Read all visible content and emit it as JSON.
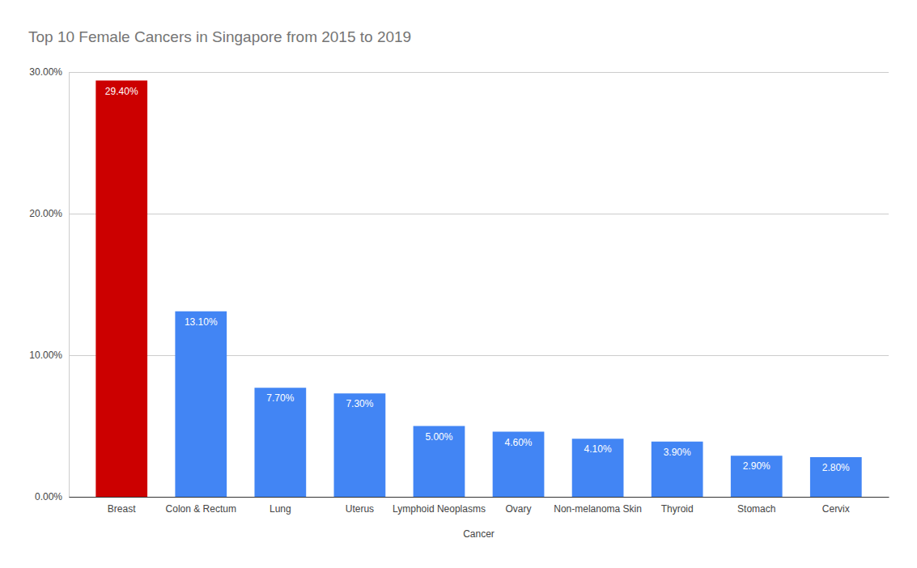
{
  "chart_data": {
    "type": "bar",
    "title": "Top 10 Female Cancers in Singapore from 2015 to 2019",
    "x_label": "Cancer",
    "categories": [
      "Breast",
      "Colon & Rectum",
      "Lung",
      "Uterus",
      "Lymphoid Neoplasms",
      "Ovary",
      "Non-melanoma Skin",
      "Thyroid",
      "Stomach",
      "Cervix"
    ],
    "values": [
      29.4,
      13.1,
      7.7,
      7.3,
      5.0,
      4.6,
      4.1,
      3.9,
      2.9,
      2.8
    ],
    "value_labels": [
      "29.40%",
      "13.10%",
      "7.70%",
      "7.30%",
      "5.00%",
      "4.60%",
      "4.10%",
      "3.90%",
      "2.90%",
      "2.80%"
    ],
    "colors": [
      "#cc0000",
      "#4285f4",
      "#4285f4",
      "#4285f4",
      "#4285f4",
      "#4285f4",
      "#4285f4",
      "#4285f4",
      "#4285f4",
      "#4285f4"
    ],
    "ylim": [
      0,
      30
    ],
    "yticks": [
      {
        "value": 0,
        "label": "0.00%"
      },
      {
        "value": 10,
        "label": "10.00%"
      },
      {
        "value": 20,
        "label": "20.00%"
      },
      {
        "value": 30,
        "label": "30.00%"
      }
    ],
    "grid": true,
    "data_labels": true
  }
}
